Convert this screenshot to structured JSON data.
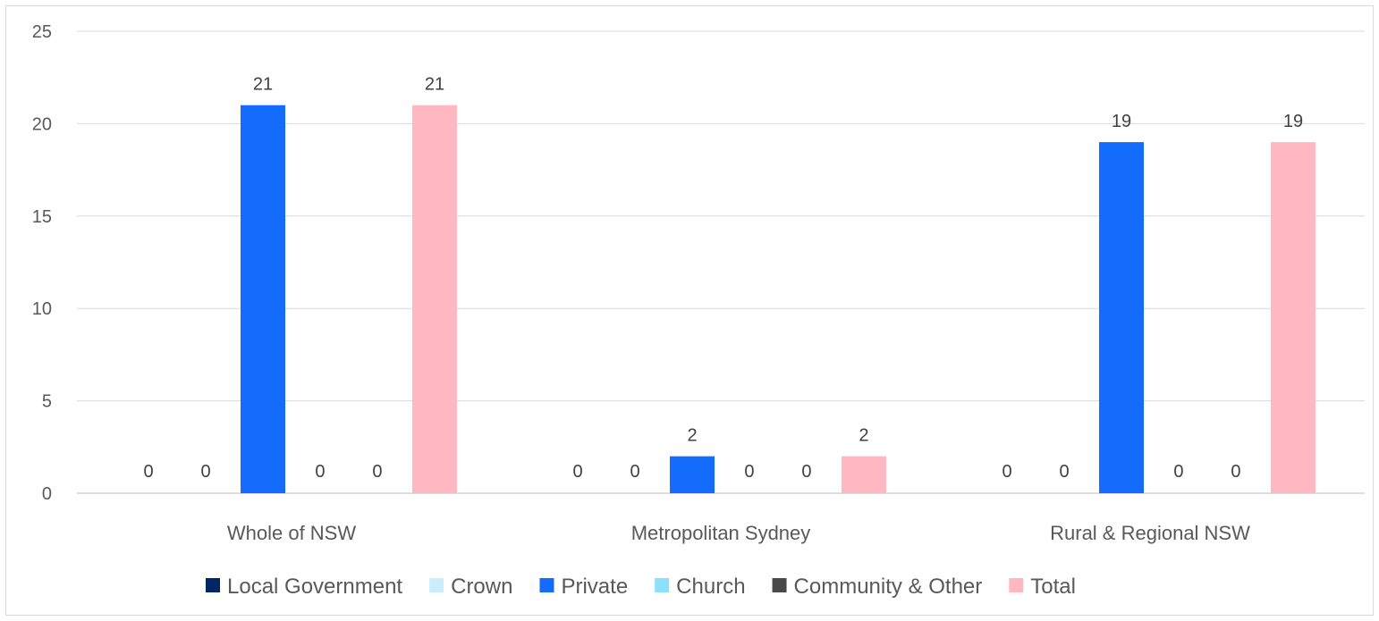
{
  "chart_data": {
    "type": "bar",
    "categories": [
      "Whole of NSW",
      "Metropolitan Sydney",
      "Rural & Regional NSW"
    ],
    "series": [
      {
        "name": "Local Government",
        "values": [
          0,
          0,
          0
        ],
        "color": "#002664"
      },
      {
        "name": "Crown",
        "values": [
          0,
          0,
          0
        ],
        "color": "#cbedfd"
      },
      {
        "name": "Private",
        "values": [
          21,
          2,
          19
        ],
        "color": "#146cfd"
      },
      {
        "name": "Church",
        "values": [
          0,
          0,
          0
        ],
        "color": "#8ce0ff"
      },
      {
        "name": "Community & Other",
        "values": [
          0,
          0,
          0
        ],
        "color": "#4a4a4a"
      },
      {
        "name": "Total",
        "values": [
          21,
          2,
          19
        ],
        "color": "#ffb8c1"
      }
    ],
    "ylim": [
      0,
      25
    ],
    "yticks": [
      0,
      5,
      10,
      15,
      20,
      25
    ],
    "grid": true,
    "legend_position": "bottom"
  }
}
